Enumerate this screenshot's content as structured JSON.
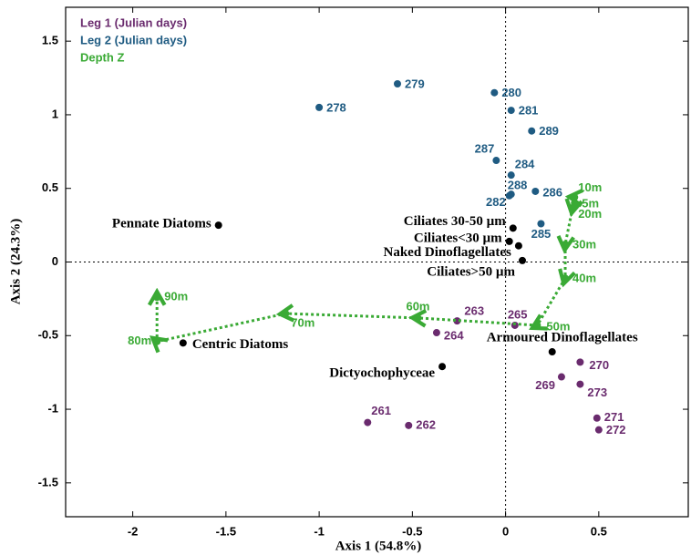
{
  "chart_data": {
    "type": "scatter",
    "x_label": "Axis 1 (54.8%)",
    "y_label": "Axis 2 (24.3%)",
    "xlim": [
      -2.36,
      0.98
    ],
    "ylim": [
      -1.73,
      1.73
    ],
    "xticks": [
      -2,
      -1.5,
      -1,
      -0.5,
      0,
      0.5
    ],
    "yticks": [
      -1.5,
      -1,
      -0.5,
      0,
      0.5,
      1,
      1.5
    ],
    "zero_lines": true,
    "legend": "upper left",
    "series": [
      {
        "name": "Leg 1 (Julian days)",
        "color": "#6a2b6e",
        "labels": [
          "261",
          "262",
          "263",
          "264",
          "265",
          "270",
          "269",
          "273",
          "271",
          "272"
        ],
        "x": [
          -0.74,
          -0.52,
          -0.26,
          -0.37,
          0.05,
          0.4,
          0.3,
          0.4,
          0.49,
          0.5
        ],
        "values": [
          -1.09,
          -1.11,
          -0.4,
          -0.48,
          -0.43,
          -0.68,
          -0.78,
          -0.83,
          -1.06,
          -1.14
        ]
      },
      {
        "name": "Leg 2 (Julian days)",
        "color": "#1f5b82",
        "labels": [
          "278",
          "279",
          "280",
          "281",
          "289",
          "287",
          "284",
          "288",
          "282",
          "286",
          "285"
        ],
        "x": [
          -1.0,
          -0.58,
          -0.06,
          0.03,
          0.14,
          -0.05,
          0.03,
          0.03,
          0.02,
          0.16,
          0.19
        ],
        "values": [
          1.05,
          1.21,
          1.15,
          1.03,
          0.89,
          0.69,
          0.59,
          0.46,
          0.45,
          0.48,
          0.26
        ]
      },
      {
        "name": "Depth Z",
        "color": "#3aaa35",
        "line": "dotted",
        "labels": [
          "5m",
          "10m",
          "20m",
          "30m",
          "40m",
          "50m",
          "60m",
          "70m",
          "80m",
          "90m"
        ],
        "x": [
          0.37,
          0.37,
          0.36,
          0.32,
          0.32,
          0.17,
          -0.47,
          -1.18,
          -1.87,
          -1.87
        ],
        "values": [
          0.4,
          0.44,
          0.37,
          0.12,
          -0.11,
          -0.43,
          -0.38,
          -0.35,
          -0.54,
          -0.24
        ]
      }
    ],
    "variables": {
      "color": "#000000",
      "labels": [
        "Pennate Diatoms",
        "Centric Diatoms",
        "Dictyochophyceae",
        "Armoured Dinoflagellates",
        "Ciliates 30-50 µm",
        "Ciliates<30 µm",
        "Naked Dinoflagellates",
        "Ciliates>50 µm"
      ],
      "x": [
        -1.54,
        -1.73,
        -0.34,
        0.25,
        0.04,
        0.02,
        0.07,
        0.09
      ],
      "values": [
        0.25,
        -0.55,
        -0.71,
        -0.61,
        0.23,
        0.14,
        0.11,
        0.01
      ]
    }
  }
}
